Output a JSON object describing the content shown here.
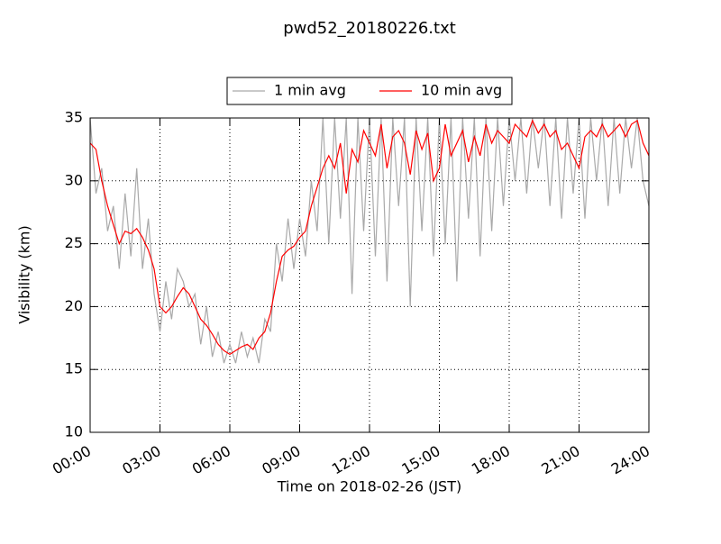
{
  "chart_data": {
    "type": "line",
    "title": "pwd52_20180226.txt",
    "x_label": "Time on 2018-02-26 (JST)",
    "y_label": "Visibility (km)",
    "x": [
      0,
      0.25,
      0.5,
      0.75,
      1,
      1.25,
      1.5,
      1.75,
      2,
      2.25,
      2.5,
      2.75,
      3,
      3.25,
      3.5,
      3.75,
      4,
      4.25,
      4.5,
      4.75,
      5,
      5.25,
      5.5,
      5.75,
      6,
      6.25,
      6.5,
      6.75,
      7,
      7.25,
      7.5,
      7.75,
      8,
      8.25,
      8.5,
      8.75,
      9,
      9.25,
      9.5,
      9.75,
      10,
      10.25,
      10.5,
      10.75,
      11,
      11.25,
      11.5,
      11.75,
      12,
      12.25,
      12.5,
      12.75,
      13,
      13.25,
      13.5,
      13.75,
      14,
      14.25,
      14.5,
      14.75,
      15,
      15.25,
      15.5,
      15.75,
      16,
      16.25,
      16.5,
      16.75,
      17,
      17.25,
      17.5,
      17.75,
      18,
      18.25,
      18.5,
      18.75,
      19,
      19.25,
      19.5,
      19.75,
      20,
      20.25,
      20.5,
      20.75,
      21,
      21.25,
      21.5,
      21.75,
      22,
      22.25,
      22.5,
      22.75,
      23,
      23.25,
      23.5,
      23.75,
      24
    ],
    "series": [
      {
        "name": "1 min avg",
        "color": "#a9a9a9",
        "values": [
          35,
          29,
          31,
          26,
          28,
          23,
          29,
          24,
          31,
          23,
          27,
          21,
          18,
          22,
          19,
          23,
          22,
          20,
          21,
          17,
          20,
          16,
          18,
          15.5,
          17,
          15.5,
          18,
          16,
          17.5,
          15.5,
          19,
          18,
          25,
          22,
          27,
          23,
          27,
          24,
          30,
          26,
          35,
          25,
          35,
          27,
          35,
          21,
          35,
          26,
          35,
          24,
          35,
          22,
          35,
          28,
          35,
          20,
          35,
          26,
          35,
          24,
          35,
          25,
          35,
          22,
          35,
          27,
          35,
          24,
          35,
          26,
          35,
          28,
          35,
          30,
          35,
          29,
          35,
          31,
          35,
          28,
          35,
          27,
          35,
          29,
          35,
          27,
          35,
          30,
          35,
          28,
          35,
          29,
          35,
          31,
          35,
          30,
          28
        ]
      },
      {
        "name": "10 min avg",
        "color": "#ff0000",
        "values": [
          33,
          32.5,
          30,
          28,
          26.5,
          25,
          26,
          25.8,
          26.2,
          25.5,
          24.5,
          23,
          20,
          19.5,
          20,
          20.8,
          21.5,
          21,
          20,
          19,
          18.5,
          17.8,
          17,
          16.5,
          16.2,
          16.5,
          16.8,
          17,
          16.6,
          17.5,
          18,
          19.5,
          22,
          24,
          24.5,
          24.8,
          25.5,
          26,
          28,
          29.5,
          31,
          32,
          31,
          33,
          29,
          32.5,
          31.5,
          34,
          33,
          32,
          34.5,
          31,
          33.5,
          34,
          33,
          30.5,
          34,
          32.5,
          33.8,
          30,
          31,
          34.5,
          32,
          33,
          34,
          31.5,
          33.5,
          32,
          34.5,
          33,
          34,
          33.5,
          33,
          34.5,
          34,
          33.5,
          34.8,
          33.8,
          34.5,
          33.5,
          34,
          32.5,
          33,
          32,
          31,
          33.5,
          34,
          33.5,
          34.5,
          33.5,
          34,
          34.5,
          33.5,
          34.5,
          34.8,
          33,
          32
        ]
      }
    ],
    "xlim": [
      0,
      24
    ],
    "xticks": [
      {
        "value": 0,
        "label": "00:00"
      },
      {
        "value": 3,
        "label": "03:00"
      },
      {
        "value": 6,
        "label": "06:00"
      },
      {
        "value": 9,
        "label": "09:00"
      },
      {
        "value": 12,
        "label": "12:00"
      },
      {
        "value": 15,
        "label": "15:00"
      },
      {
        "value": 18,
        "label": "18:00"
      },
      {
        "value": 21,
        "label": "21:00"
      },
      {
        "value": 24,
        "label": "24:00"
      }
    ],
    "ylim": [
      10,
      35
    ],
    "yticks": [
      10,
      15,
      20,
      25,
      30,
      35
    ],
    "grid": true,
    "legend": "top"
  }
}
